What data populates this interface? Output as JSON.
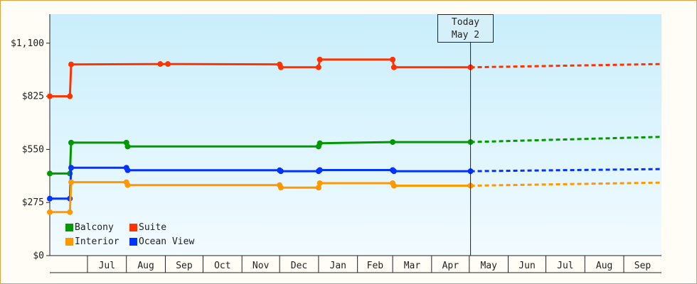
{
  "chart_data": {
    "type": "line",
    "title": "",
    "xlabel": "",
    "ylabel": "",
    "ylim": [
      0,
      1250
    ],
    "y_ticks": [
      "$0",
      "$275",
      "$550",
      "$825",
      "$1,100"
    ],
    "y_tick_values": [
      0,
      275,
      550,
      825,
      1100
    ],
    "x_tick_labels": [
      "Jul",
      "Aug",
      "Sep",
      "Oct",
      "Nov",
      "Dec",
      "Jan",
      "Feb",
      "Mar",
      "Apr",
      "May",
      "Jun",
      "Jul",
      "Aug",
      "Sep"
    ],
    "x_range": [
      "2024-06-01",
      "2025-10-01"
    ],
    "x_tick_dates": [
      "2024-07-01",
      "2024-08-01",
      "2024-09-01",
      "2024-10-01",
      "2024-11-01",
      "2024-12-01",
      "2025-01-01",
      "2025-02-01",
      "2025-03-01",
      "2025-04-01",
      "2025-05-01",
      "2025-06-01",
      "2025-07-01",
      "2025-08-01",
      "2025-09-01"
    ],
    "grid": false,
    "legend_position": "bottom-left",
    "step_line": true,
    "today": {
      "label": "Today",
      "date_label": "May 2",
      "date": "2025-05-02"
    },
    "series": [
      {
        "name": "Suite",
        "color": "#ff3300",
        "points": [
          [
            "2024-06-01",
            825
          ],
          [
            "2024-06-17",
            825
          ],
          [
            "2024-06-18",
            990
          ],
          [
            "2024-08-28",
            992
          ],
          [
            "2024-09-03",
            992
          ],
          [
            "2024-12-01",
            990
          ],
          [
            "2024-12-02",
            975
          ],
          [
            "2025-01-01",
            975
          ],
          [
            "2025-01-02",
            1015
          ],
          [
            "2025-03-01",
            1015
          ],
          [
            "2025-03-02",
            975
          ],
          [
            "2025-05-02",
            975
          ]
        ],
        "forecast": [
          [
            "2025-05-02",
            975
          ],
          [
            "2025-10-01",
            992
          ]
        ]
      },
      {
        "name": "Balcony",
        "color": "#009900",
        "points": [
          [
            "2024-06-01",
            425
          ],
          [
            "2024-06-17",
            425
          ],
          [
            "2024-06-18",
            585
          ],
          [
            "2024-08-01",
            585
          ],
          [
            "2024-08-02",
            565
          ],
          [
            "2025-01-01",
            565
          ],
          [
            "2025-01-02",
            582
          ],
          [
            "2025-03-01",
            588
          ],
          [
            "2025-05-02",
            588
          ]
        ],
        "forecast": [
          [
            "2025-05-02",
            588
          ],
          [
            "2025-10-01",
            615
          ]
        ]
      },
      {
        "name": "Ocean View",
        "color": "#0033ff",
        "points": [
          [
            "2024-06-01",
            295
          ],
          [
            "2024-06-17",
            295
          ],
          [
            "2024-06-18",
            455
          ],
          [
            "2024-08-01",
            455
          ],
          [
            "2024-08-02",
            442
          ],
          [
            "2024-12-01",
            442
          ],
          [
            "2024-12-02",
            437
          ],
          [
            "2025-01-01",
            437
          ],
          [
            "2025-01-02",
            443
          ],
          [
            "2025-03-01",
            443
          ],
          [
            "2025-03-02",
            437
          ],
          [
            "2025-05-02",
            437
          ]
        ],
        "forecast": [
          [
            "2025-05-02",
            437
          ],
          [
            "2025-10-01",
            448
          ]
        ]
      },
      {
        "name": "Interior",
        "color": "#ff9900",
        "points": [
          [
            "2024-06-01",
            225
          ],
          [
            "2024-06-17",
            225
          ],
          [
            "2024-06-18",
            380
          ],
          [
            "2024-08-01",
            380
          ],
          [
            "2024-08-02",
            365
          ],
          [
            "2024-12-01",
            365
          ],
          [
            "2024-12-02",
            352
          ],
          [
            "2025-01-01",
            352
          ],
          [
            "2025-01-02",
            375
          ],
          [
            "2025-03-01",
            375
          ],
          [
            "2025-03-02",
            362
          ],
          [
            "2025-05-02",
            362
          ]
        ],
        "forecast": [
          [
            "2025-05-02",
            362
          ],
          [
            "2025-10-01",
            378
          ]
        ]
      }
    ]
  },
  "legend": [
    {
      "name": "Balcony",
      "color": "#009900"
    },
    {
      "name": "Suite",
      "color": "#ff3300"
    },
    {
      "name": "Interior",
      "color": "#ff9900"
    },
    {
      "name": "Ocean View",
      "color": "#0033ff"
    }
  ]
}
